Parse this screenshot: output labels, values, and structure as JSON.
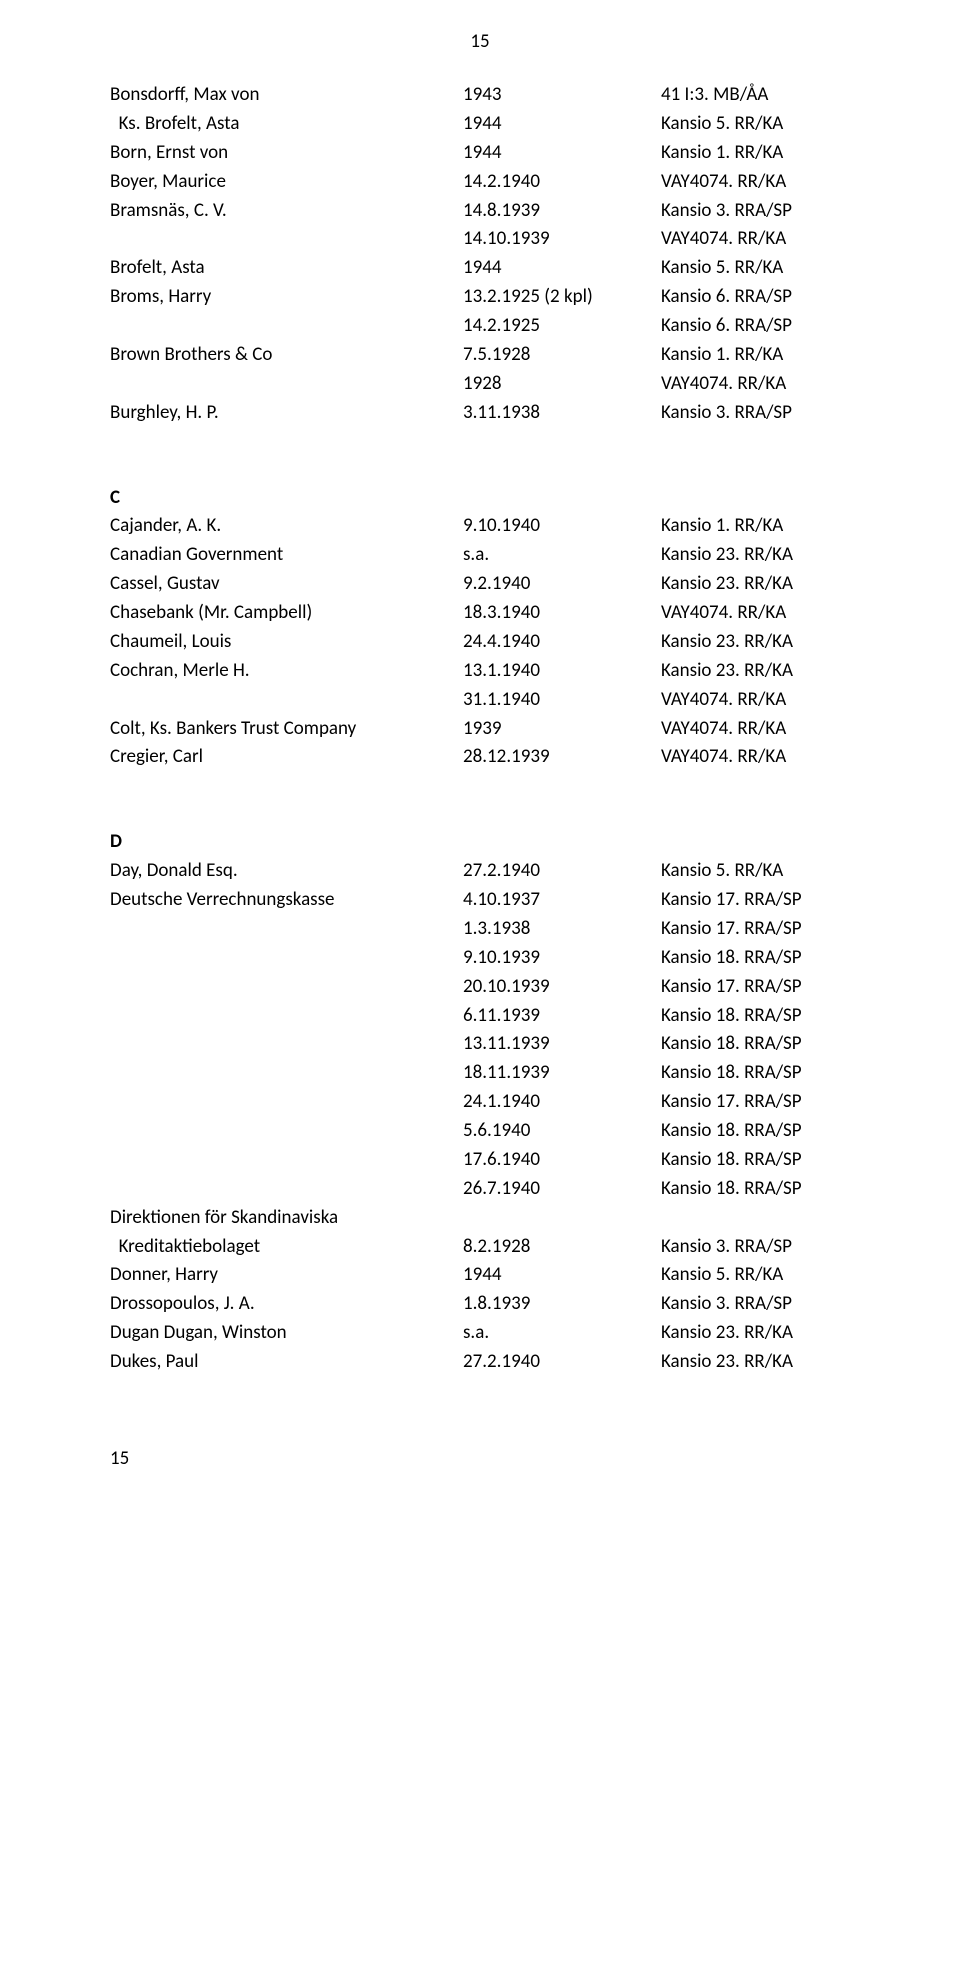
{
  "page_number_top": "15",
  "page_number_bottom": "15",
  "sections": [
    {
      "header": null,
      "rows": [
        {
          "name": "Bonsdorff, Max von",
          "date": "1943",
          "ref": "41 I:3. MB/ÅA"
        },
        {
          "name": "  Ks. Brofelt, Asta",
          "date": "1944",
          "ref": "Kansio 5. RR/KA"
        },
        {
          "name": "Born, Ernst von",
          "date": "1944",
          "ref": "Kansio 1. RR/KA"
        },
        {
          "name": "Boyer, Maurice",
          "date": "14.2.1940",
          "ref": "VAY4074. RR/KA"
        },
        {
          "name": "Bramsnäs, C. V.",
          "date": "14.8.1939",
          "ref": "Kansio 3. RRA/SP"
        },
        {
          "name": "",
          "date": "14.10.1939",
          "ref": "VAY4074. RR/KA"
        },
        {
          "name": "Brofelt, Asta",
          "date": "1944",
          "ref": "Kansio 5. RR/KA"
        },
        {
          "name": "Broms, Harry",
          "date": "13.2.1925 (2 kpl)",
          "ref": "Kansio 6. RRA/SP"
        },
        {
          "name": "",
          "date": "14.2.1925",
          "ref": "Kansio 6. RRA/SP"
        },
        {
          "name": "Brown Brothers & Co",
          "date": "7.5.1928",
          "ref": "Kansio 1. RR/KA"
        },
        {
          "name": "",
          "date": "1928",
          "ref": "VAY4074. RR/KA"
        },
        {
          "name": "Burghley, H. P.",
          "date": "3.11.1938",
          "ref": "Kansio 3. RRA/SP"
        }
      ]
    },
    {
      "header": "C",
      "rows": [
        {
          "name": "Cajander, A. K.",
          "date": "9.10.1940",
          "ref": "Kansio 1. RR/KA"
        },
        {
          "name": "Canadian Government",
          "date": "s.a.",
          "ref": "Kansio 23. RR/KA"
        },
        {
          "name": "Cassel, Gustav",
          "date": "9.2.1940",
          "ref": "Kansio 23. RR/KA"
        },
        {
          "name": "Chasebank (Mr. Campbell)",
          "date": "18.3.1940",
          "ref": "VAY4074. RR/KA"
        },
        {
          "name": "Chaumeil, Louis",
          "date": "24.4.1940",
          "ref": "Kansio 23. RR/KA"
        },
        {
          "name": "Cochran, Merle H.",
          "date": "13.1.1940",
          "ref": "Kansio 23. RR/KA"
        },
        {
          "name": "",
          "date": "31.1.1940",
          "ref": "VAY4074. RR/KA"
        },
        {
          "name": "Colt, Ks. Bankers Trust Company",
          "date": "1939",
          "ref": "VAY4074. RR/KA"
        },
        {
          "name": "Cregier, Carl",
          "date": "28.12.1939",
          "ref": "VAY4074. RR/KA"
        }
      ]
    },
    {
      "header": "D",
      "rows": [
        {
          "name": "Day, Donald Esq.",
          "date": "27.2.1940",
          "ref": "Kansio 5. RR/KA"
        },
        {
          "name": "Deutsche Verrechnungskasse",
          "date": "4.10.1937",
          "ref": "Kansio 17. RRA/SP"
        },
        {
          "name": "",
          "date": "1.3.1938",
          "ref": "Kansio 17. RRA/SP"
        },
        {
          "name": "",
          "date": "9.10.1939",
          "ref": "Kansio 18. RRA/SP"
        },
        {
          "name": "",
          "date": "20.10.1939",
          "ref": "Kansio 17. RRA/SP"
        },
        {
          "name": "",
          "date": "6.11.1939",
          "ref": "Kansio 18. RRA/SP"
        },
        {
          "name": "",
          "date": "13.11.1939",
          "ref": "Kansio 18. RRA/SP"
        },
        {
          "name": "",
          "date": "18.11.1939",
          "ref": "Kansio 18. RRA/SP"
        },
        {
          "name": "",
          "date": "24.1.1940",
          "ref": "Kansio 17. RRA/SP"
        },
        {
          "name": "",
          "date": "5.6.1940",
          "ref": "Kansio 18. RRA/SP"
        },
        {
          "name": "",
          "date": "17.6.1940",
          "ref": "Kansio 18. RRA/SP"
        },
        {
          "name": "",
          "date": "26.7.1940",
          "ref": "Kansio 18. RRA/SP"
        },
        {
          "name": "Direktionen för Skandinaviska",
          "date": "",
          "ref": ""
        },
        {
          "name": "  Kreditaktiebolaget",
          "date": "8.2.1928",
          "ref": "Kansio 3. RRA/SP"
        },
        {
          "name": "Donner, Harry",
          "date": "1944",
          "ref": "Kansio 5. RR/KA"
        },
        {
          "name": "Drossopoulos, J. A.",
          "date": "1.8.1939",
          "ref": "Kansio 3. RRA/SP"
        },
        {
          "name": "Dugan Dugan, Winston",
          "date": "s.a.",
          "ref": "Kansio 23. RR/KA"
        },
        {
          "name": "Dukes, Paul",
          "date": "27.2.1940",
          "ref": "Kansio 23. RR/KA"
        }
      ]
    }
  ]
}
